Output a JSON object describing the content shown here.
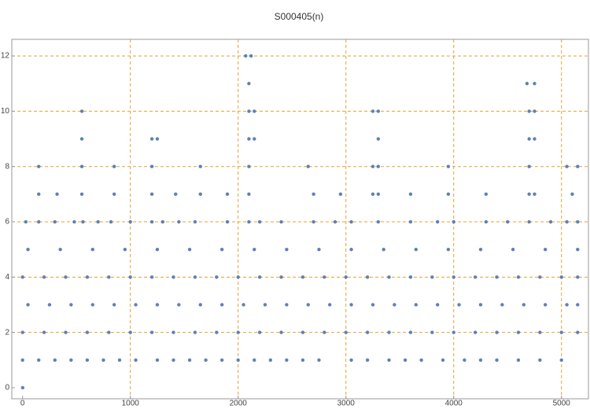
{
  "chart_data": {
    "type": "scatter",
    "title": "S000405(n)",
    "color": "#5e81b5",
    "grid_color": "#e8a030",
    "grid": true,
    "xlim": [
      -100,
      5250
    ],
    "ylim": [
      -0.4,
      12.6
    ],
    "xticks": [
      0,
      1000,
      2000,
      3000,
      4000,
      5000
    ],
    "yticks": [
      0,
      2,
      4,
      6,
      8,
      10,
      12
    ],
    "x": [
      1,
      0,
      150,
      300,
      450,
      600,
      750,
      900,
      1050,
      1250,
      1400,
      1550,
      1700,
      1850,
      2000,
      2150,
      2300,
      2450,
      2600,
      2750,
      3050,
      3200,
      3400,
      3550,
      3700,
      3900,
      4100,
      4250,
      4400,
      4600,
      4800,
      5000,
      0,
      200,
      400,
      600,
      800,
      1000,
      1200,
      1400,
      1600,
      1800,
      2000,
      2200,
      2400,
      2600,
      2800,
      3000,
      3200,
      3400,
      3600,
      3800,
      4000,
      4200,
      4400,
      4600,
      4800,
      5000,
      5150,
      50,
      250,
      450,
      650,
      850,
      1050,
      1250,
      1450,
      1650,
      1850,
      2050,
      2250,
      2450,
      2650,
      2850,
      3050,
      3250,
      3450,
      3650,
      3850,
      4050,
      4250,
      4450,
      4650,
      4850,
      5050,
      5150,
      0,
      200,
      400,
      600,
      800,
      1000,
      1200,
      1400,
      1600,
      1800,
      2000,
      2200,
      2400,
      2600,
      2800,
      3000,
      3200,
      3400,
      3600,
      3800,
      4000,
      4200,
      4400,
      4600,
      4800,
      5000,
      5150,
      50,
      350,
      650,
      950,
      1250,
      1550,
      1850,
      2150,
      2450,
      2750,
      3050,
      3350,
      3650,
      3950,
      4250,
      4550,
      4850,
      5150,
      30,
      150,
      300,
      480,
      560,
      700,
      820,
      1000,
      1200,
      1300,
      1450,
      1600,
      1900,
      2100,
      2200,
      2400,
      2700,
      2900,
      3050,
      3300,
      3600,
      3850,
      4000,
      4300,
      4500,
      4700,
      4900,
      5050,
      5150,
      150,
      320,
      550,
      850,
      1200,
      1420,
      1650,
      1900,
      2100,
      2700,
      2950,
      3250,
      3300,
      3600,
      3950,
      4300,
      4700,
      4750,
      5100,
      150,
      550,
      850,
      1200,
      1650,
      2100,
      2650,
      3250,
      3300,
      3950,
      4700,
      5050,
      5150,
      550,
      1200,
      1250,
      2100,
      2150,
      3300,
      4700,
      4750,
      550,
      2100,
      2150,
      3250,
      3300,
      4700,
      4750,
      2100,
      4680,
      4750,
      2070,
      2120
    ],
    "values": [
      0,
      1,
      1,
      1,
      1,
      1,
      1,
      1,
      1,
      1,
      1,
      1,
      1,
      1,
      1,
      1,
      1,
      1,
      1,
      1,
      1,
      1,
      1,
      1,
      1,
      1,
      1,
      1,
      1,
      1,
      1,
      1,
      2,
      2,
      2,
      2,
      2,
      2,
      2,
      2,
      2,
      2,
      2,
      2,
      2,
      2,
      2,
      2,
      2,
      2,
      2,
      2,
      2,
      2,
      2,
      2,
      2,
      2,
      2,
      3,
      3,
      3,
      3,
      3,
      3,
      3,
      3,
      3,
      3,
      3,
      3,
      3,
      3,
      3,
      3,
      3,
      3,
      3,
      3,
      3,
      3,
      3,
      3,
      3,
      3,
      3,
      4,
      4,
      4,
      4,
      4,
      4,
      4,
      4,
      4,
      4,
      4,
      4,
      4,
      4,
      4,
      4,
      4,
      4,
      4,
      4,
      4,
      4,
      4,
      4,
      4,
      4,
      4,
      5,
      5,
      5,
      5,
      5,
      5,
      5,
      5,
      5,
      5,
      5,
      5,
      5,
      5,
      5,
      5,
      5,
      5,
      6,
      6,
      6,
      6,
      6,
      6,
      6,
      6,
      6,
      6,
      6,
      6,
      6,
      6,
      6,
      6,
      6,
      6,
      6,
      6,
      6,
      6,
      6,
      6,
      6,
      6,
      6,
      6,
      6,
      7,
      7,
      7,
      7,
      7,
      7,
      7,
      7,
      7,
      7,
      7,
      7,
      7,
      7,
      7,
      7,
      7,
      7,
      7,
      8,
      8,
      8,
      8,
      8,
      8,
      8,
      8,
      8,
      8,
      8,
      8,
      8,
      9,
      9,
      9,
      9,
      9,
      9,
      9,
      9,
      10,
      10,
      10,
      10,
      10,
      10,
      10,
      11,
      11,
      11,
      12,
      12
    ]
  }
}
